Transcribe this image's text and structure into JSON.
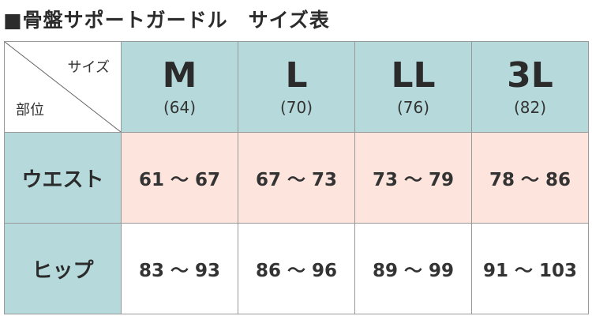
{
  "title": "■骨盤サポートガードル　サイズ表",
  "corner": {
    "size": "サイズ",
    "part": "部位"
  },
  "sizes": [
    {
      "name": "M",
      "waist_code": "(64)"
    },
    {
      "name": "L",
      "waist_code": "(70)"
    },
    {
      "name": "LL",
      "waist_code": "(76)"
    },
    {
      "name": "3L",
      "waist_code": "(82)"
    }
  ],
  "rows": [
    {
      "label": "ウエスト",
      "values": [
        "61 〜 67",
        "67 〜 73",
        "73 〜 79",
        "78 〜 86"
      ]
    },
    {
      "label": "ヒップ",
      "values": [
        "83 〜 93",
        "86 〜 96",
        "89 〜 99",
        "91 〜 103"
      ]
    }
  ],
  "colors": {
    "header": "#b6dadb",
    "waist_row": "#fde4dc"
  }
}
